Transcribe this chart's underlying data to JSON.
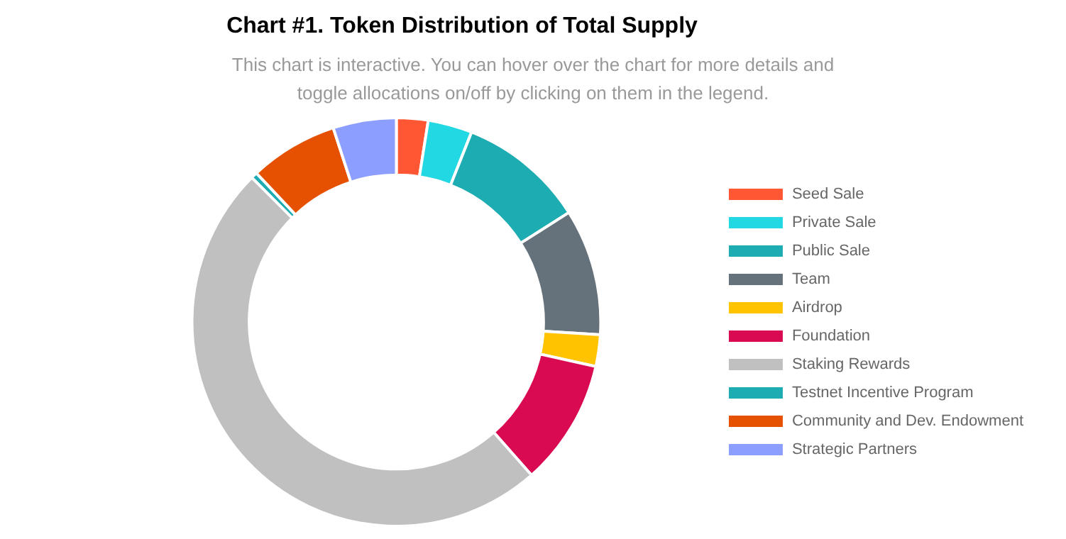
{
  "chart_data": {
    "type": "donut",
    "title": "Chart #1. Token Distribution of Total Supply",
    "subtitle": "This chart is interactive. You can hover over the chart for more details and toggle allocations on/off by clicking on them in the legend.",
    "categories": [
      "Seed Sale",
      "Private Sale",
      "Public Sale",
      "Team",
      "Airdrop",
      "Foundation",
      "Staking Rewards",
      "Testnet Incentive Program",
      "Community and Dev. Endowment",
      "Strategic Partners"
    ],
    "values": [
      2.5,
      3.5,
      10,
      10,
      2.5,
      10,
      49,
      0.5,
      7,
      5
    ],
    "colors": [
      "#ff5733",
      "#22d8e3",
      "#1eacb3",
      "#66727b",
      "#ffc300",
      "#d90a52",
      "#c0c0c0",
      "#1eacb3",
      "#e55100",
      "#8c9eff"
    ],
    "legend": "right"
  }
}
